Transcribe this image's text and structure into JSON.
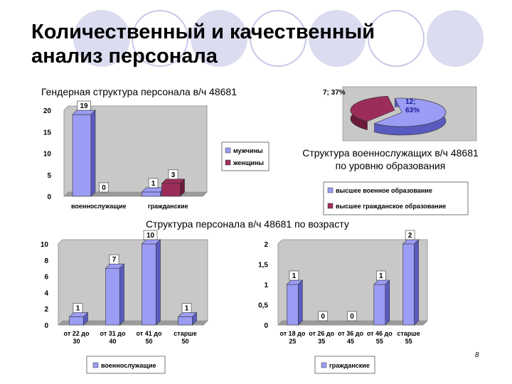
{
  "slide": {
    "title_line1": "Количественный и качественный",
    "title_line2": "анализ персонала",
    "page_number": "8"
  },
  "colors": {
    "blue": "#9b9cf4",
    "blue_dark": "#5a5bc0",
    "red": "#9c2d5a",
    "red_dark": "#6b1a3a",
    "plot_bg": "#c8c8c8",
    "decor_circle": "#c6c8e8"
  },
  "captions": {
    "gender": "Гендерная структура персонала в/ч 48681",
    "education_line1": "Структура военнослужащих в/ч 48681",
    "education_line2": "по уровню образования",
    "age": "Структура персонала в/ч 48681 по возрасту"
  },
  "chart_data": [
    {
      "type": "bar",
      "categories": [
        "военнослужащие",
        "гражданские"
      ],
      "series": [
        {
          "name": "мужчины",
          "values": [
            19,
            1
          ]
        },
        {
          "name": "женщины",
          "values": [
            0,
            3
          ]
        }
      ],
      "ylim": [
        0,
        20
      ],
      "yticks": [
        "0",
        "5",
        "10",
        "15",
        "20"
      ],
      "legend": "right",
      "grid": false
    },
    {
      "type": "pie",
      "slices": [
        {
          "label": "12; 63%",
          "value": 12
        },
        {
          "label": "7; 37%",
          "value": 7
        }
      ],
      "legend_entries": [
        "высшее военное образование",
        "высшее гражданское образование"
      ],
      "legend": "bottom"
    },
    {
      "type": "bar",
      "categories": [
        "от 22 до 30",
        "от 31 до 40",
        "от 41 до 50",
        "старше 50"
      ],
      "series": [
        {
          "name": "военнослужащие",
          "values": [
            1,
            7,
            10,
            1
          ]
        }
      ],
      "ylim": [
        0,
        10
      ],
      "yticks": [
        "0",
        "2",
        "4",
        "6",
        "8",
        "10"
      ],
      "legend": "bottom"
    },
    {
      "type": "bar",
      "categories": [
        "от 18 до 25",
        "от 26 до 35",
        "от 36 до 45",
        "от 46 до 55",
        "старше 55"
      ],
      "series": [
        {
          "name": "гражданские",
          "values": [
            1,
            0,
            0,
            1,
            2
          ]
        }
      ],
      "ylim": [
        0,
        2
      ],
      "yticks": [
        "0",
        "0,5",
        "1",
        "1,5",
        "2"
      ],
      "legend": "bottom"
    }
  ]
}
